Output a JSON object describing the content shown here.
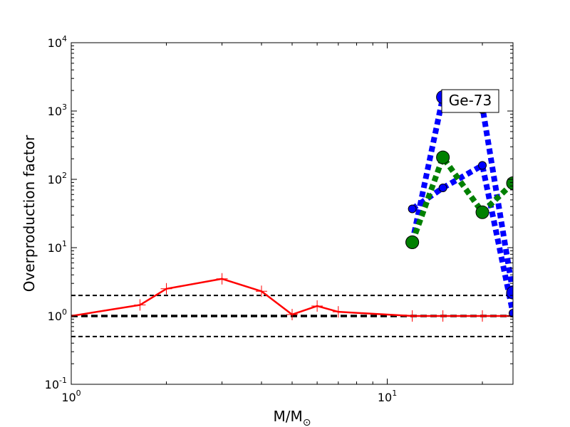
{
  "chart_data": {
    "type": "line",
    "xlabel": "M/M",
    "xlabel_sub": "⊙",
    "ylabel": "Overproduction factor",
    "xscale": "log",
    "yscale": "log",
    "xlim": [
      1,
      25
    ],
    "ylim": [
      0.1,
      10000
    ],
    "x_ticks": [
      {
        "value": 1,
        "base": "10",
        "exp": "0"
      },
      {
        "value": 10,
        "base": "10",
        "exp": "1"
      }
    ],
    "y_ticks": [
      {
        "value": 0.1,
        "base": "10",
        "exp": "-1"
      },
      {
        "value": 1,
        "base": "10",
        "exp": "0"
      },
      {
        "value": 10,
        "base": "10",
        "exp": "1"
      },
      {
        "value": 100,
        "base": "10",
        "exp": "2"
      },
      {
        "value": 1000,
        "base": "10",
        "exp": "3"
      },
      {
        "value": 10000,
        "base": "10",
        "exp": "4"
      }
    ],
    "reference_lines": [
      {
        "y": 2,
        "style": "dashed",
        "color": "#000000",
        "width": "thin"
      },
      {
        "y": 1,
        "style": "dashed",
        "color": "#000000",
        "width": "thick"
      },
      {
        "y": 0.5,
        "style": "dashed",
        "color": "#000000",
        "width": "thin"
      }
    ],
    "annotation": "Ge-73",
    "series": [
      {
        "color": "#ff0000",
        "style": "solid",
        "marker": "plus",
        "x": [
          1.0,
          1.65,
          2.0,
          3.0,
          4.0,
          5.0,
          6.0,
          7.0,
          12.0,
          15.0,
          20.0,
          25.0
        ],
        "y": [
          1.0,
          1.45,
          2.5,
          3.5,
          2.3,
          1.05,
          1.4,
          1.15,
          1.0,
          1.0,
          1.0,
          1.0
        ]
      },
      {
        "color": "#0000ff",
        "style": "dotted",
        "marker": "circle-large",
        "x": [
          12.0,
          15.0,
          20.0,
          25.0
        ],
        "y": [
          12.0,
          1600.0,
          1150.0,
          2.2
        ]
      },
      {
        "color": "#0000ff",
        "style": "dotted",
        "marker": "circle-small",
        "x": [
          12.0,
          15.0,
          20.0,
          25.0
        ],
        "y": [
          37.0,
          75.0,
          160.0,
          1.1
        ]
      },
      {
        "color": "#008000",
        "style": "dotted",
        "marker": "circle-large",
        "x": [
          12.0,
          15.0,
          20.0,
          25.0
        ],
        "y": [
          12.0,
          210.0,
          33.0,
          88.0
        ]
      }
    ]
  }
}
